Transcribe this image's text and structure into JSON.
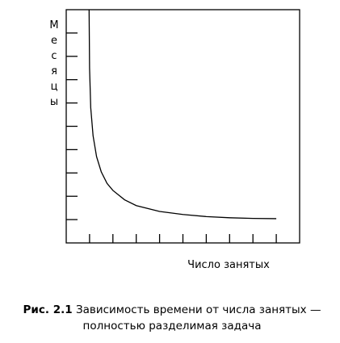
{
  "chart_data": {
    "type": "line",
    "y_label": "Месяцы",
    "x_label": "Число занятых",
    "caption_label": "Рис. 2.1",
    "caption": "Зависимость времени от числа занятых — полностью разделимая задача",
    "xlim": [
      0,
      10
    ],
    "ylim": [
      0,
      10
    ],
    "xticks": [
      1,
      2,
      3,
      4,
      5,
      6,
      7,
      8,
      9
    ],
    "yticks": [
      1,
      2,
      3,
      4,
      5,
      6,
      7,
      8,
      9
    ],
    "series": [
      {
        "color": "#000000",
        "x": [
          0.98,
          1.0,
          1.05,
          1.15,
          1.3,
          1.5,
          1.75,
          2.0,
          2.5,
          3.0,
          4.0,
          5.0,
          6.0,
          7.0,
          8.0,
          9.0
        ],
        "values": [
          10,
          7.5,
          5.8,
          4.6,
          3.7,
          3.05,
          2.55,
          2.25,
          1.85,
          1.6,
          1.35,
          1.22,
          1.13,
          1.08,
          1.05,
          1.04
        ]
      }
    ]
  }
}
